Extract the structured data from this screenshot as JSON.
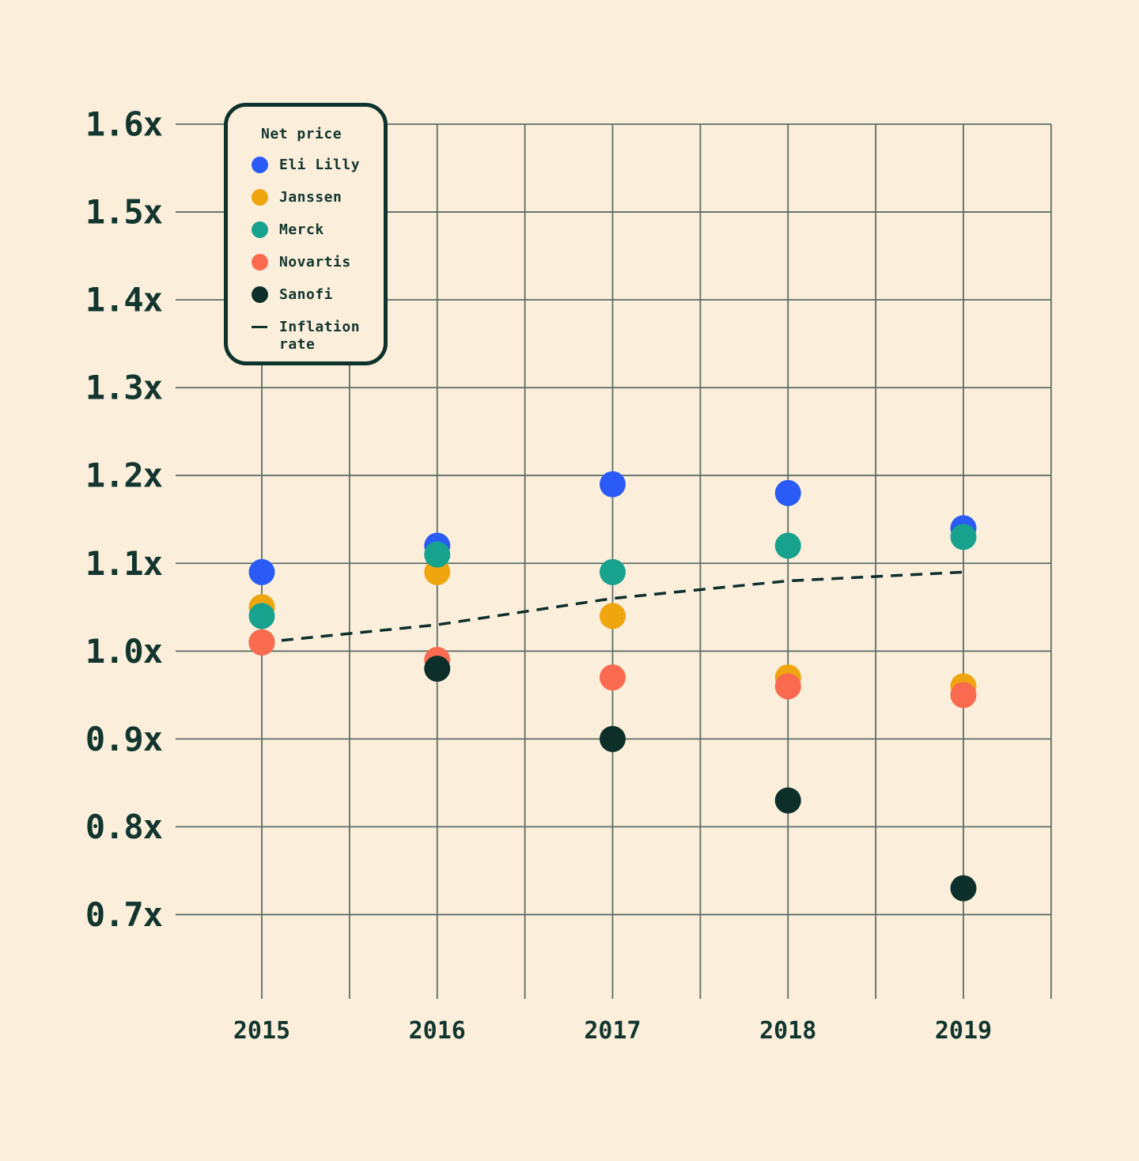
{
  "chart_data": {
    "type": "scatter",
    "title": "",
    "legend": {
      "title": "Net price",
      "line_item_label": "Inflation rate"
    },
    "x": {
      "categories": [
        "2015",
        "2016",
        "2017",
        "2018",
        "2019"
      ]
    },
    "y": {
      "min": 0.7,
      "max": 1.6,
      "tick_step": 0.1,
      "tick_labels": [
        "1.6x",
        "1.5x",
        "1.4x",
        "1.3x",
        "1.2x",
        "1.1x",
        "1.0x",
        "0.9x",
        "0.8x",
        "0.7x"
      ]
    },
    "grid": true,
    "legend_position": "top-left",
    "series": [
      {
        "name": "Eli Lilly",
        "color": "#2a5bf6",
        "values": [
          1.09,
          1.12,
          1.19,
          1.18,
          1.14
        ]
      },
      {
        "name": "Janssen",
        "color": "#efa60e",
        "values": [
          1.05,
          1.09,
          1.04,
          0.97,
          0.96
        ]
      },
      {
        "name": "Merck",
        "color": "#17a28e",
        "values": [
          1.04,
          1.11,
          1.09,
          1.12,
          1.13
        ]
      },
      {
        "name": "Novartis",
        "color": "#fa6a4f",
        "values": [
          1.01,
          0.99,
          0.97,
          0.96,
          0.95
        ]
      },
      {
        "name": "Sanofi",
        "color": "#0d2f2a",
        "values": [
          1.01,
          0.98,
          0.9,
          0.83,
          0.73
        ]
      }
    ],
    "line_series": {
      "name": "Inflation rate",
      "color": "#0d2f2a",
      "style": "dashed",
      "values": [
        1.01,
        1.03,
        1.06,
        1.08,
        1.09
      ]
    }
  },
  "colors": {
    "background": "#fbefdc",
    "grid": "#5c6e63",
    "axis_text": "#12362e",
    "legend_border": "#0e332c"
  }
}
